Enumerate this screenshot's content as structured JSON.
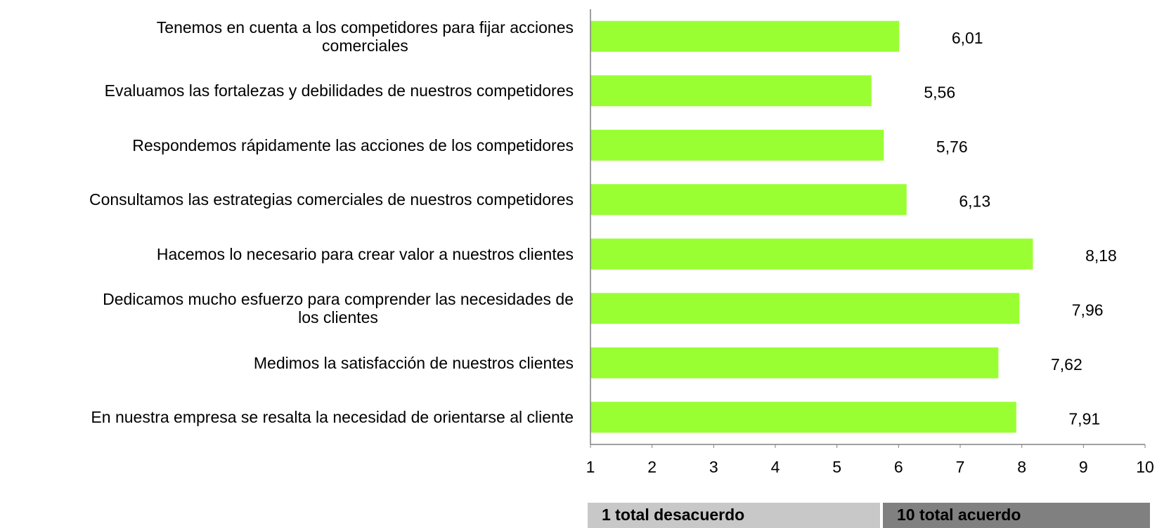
{
  "chart_data": {
    "type": "barh",
    "categories": [
      "Tenemos en cuenta a los competidores para fijar acciones\ncomerciales",
      "Evaluamos las fortalezas y debilidades de nuestros competidores",
      "Respondemos rápidamente las acciones de los competidores",
      "Consultamos las estrategias comerciales de nuestros competidores",
      "Hacemos lo necesario para crear valor a nuestros clientes",
      "Dedicamos mucho esfuerzo para comprender las necesidades de\nlos clientes",
      "Medimos la satisfacción de nuestros clientes",
      "En nuestra empresa se resalta la necesidad de orientarse al cliente"
    ],
    "values": [
      6.01,
      5.56,
      5.76,
      6.13,
      8.18,
      7.96,
      7.62,
      7.91
    ],
    "value_labels": [
      "6,01",
      "5,56",
      "5,76",
      "6,13",
      "8,18",
      "7,96",
      "7,62",
      "7,91"
    ],
    "color": "#99ff33",
    "xlim": [
      1,
      10
    ],
    "xticks": [
      1,
      2,
      3,
      4,
      5,
      6,
      7,
      8,
      9,
      10
    ],
    "grid": false,
    "annotations": [
      {
        "text": "1 total desacuerdo",
        "color": "#c8c8c8"
      },
      {
        "text": "10 total acuerdo",
        "color": "#808080"
      }
    ]
  }
}
